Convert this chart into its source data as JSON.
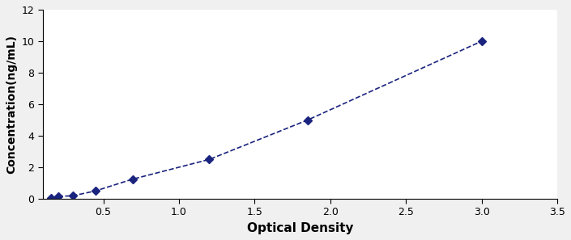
{
  "x": [
    0.154,
    0.205,
    0.298,
    0.447,
    0.694,
    1.2,
    1.85,
    3.0
  ],
  "y": [
    0.078,
    0.156,
    0.195,
    0.5,
    1.25,
    2.5,
    5.0,
    10.0
  ],
  "line_color": "#1a237e",
  "marker": "D",
  "marker_size": 5,
  "line_style": "--",
  "line_width": 1.2,
  "xlabel": "Optical Density",
  "ylabel": "Concentration(ng/mL)",
  "xlim": [
    0.1,
    3.5
  ],
  "ylim": [
    0,
    12
  ],
  "xticks": [
    0.5,
    1.0,
    1.5,
    2.0,
    2.5,
    3.0,
    3.5
  ],
  "yticks": [
    0,
    2,
    4,
    6,
    8,
    10,
    12
  ],
  "xlabel_fontsize": 11,
  "ylabel_fontsize": 10,
  "tick_fontsize": 9,
  "background_color": "#ffffff",
  "figure_background": "#f0f0f0"
}
